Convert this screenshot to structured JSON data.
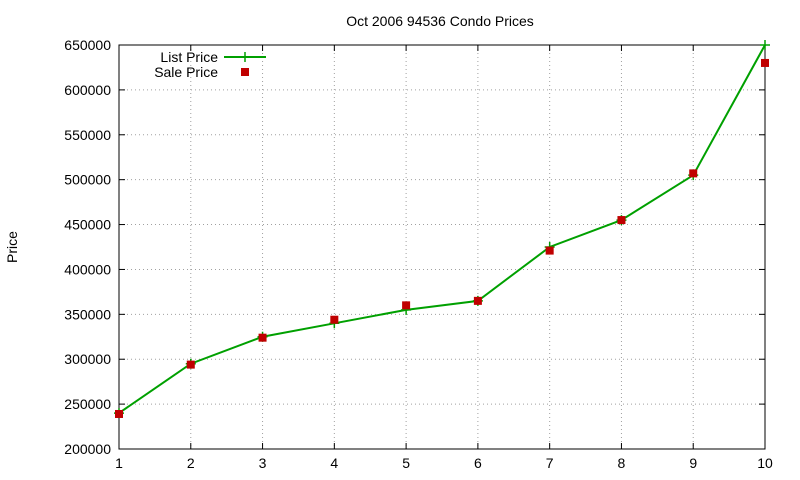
{
  "chart_data": {
    "type": "line",
    "title": "Oct 2006 94536 Condo Prices",
    "xlabel": "",
    "ylabel": "Price",
    "x": [
      1,
      2,
      3,
      4,
      5,
      6,
      7,
      8,
      9,
      10
    ],
    "xlim": [
      1,
      10
    ],
    "ylim": [
      200000,
      650000
    ],
    "xticks": [
      "1",
      "2",
      "3",
      "4",
      "5",
      "6",
      "7",
      "8",
      "9",
      "10"
    ],
    "yticks": [
      "200000",
      "250000",
      "300000",
      "350000",
      "400000",
      "450000",
      "500000",
      "550000",
      "600000",
      "650000"
    ],
    "grid": true,
    "legend_position": "top-left",
    "series": [
      {
        "name": "List Price",
        "style": "line-with-plus-markers",
        "color": "#00a000",
        "values": [
          240000,
          295000,
          325000,
          340000,
          355000,
          365000,
          425000,
          455000,
          505000,
          650000
        ]
      },
      {
        "name": "Sale Price",
        "style": "square-markers",
        "color": "#c00000",
        "values": [
          239000,
          294000,
          324000,
          344000,
          360000,
          365000,
          421000,
          455000,
          507000,
          630000
        ]
      }
    ]
  }
}
